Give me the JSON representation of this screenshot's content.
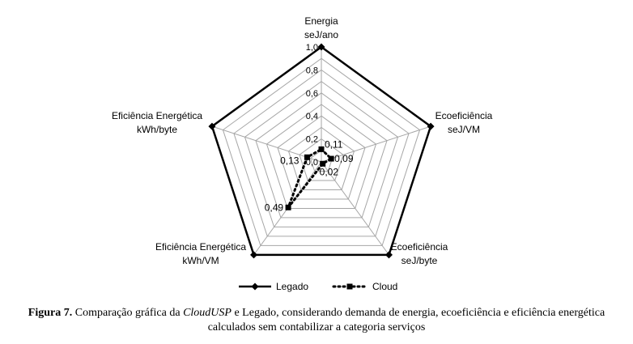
{
  "chart_data": {
    "type": "radar",
    "axes": [
      {
        "label": "Energia",
        "unit": "seJ/ano"
      },
      {
        "label": "Ecoeficiência",
        "unit": "seJ/VM"
      },
      {
        "label": "Ecoeficiência",
        "unit": "seJ/byte"
      },
      {
        "label": "Eficiência Energética",
        "unit": "kWh/VM"
      },
      {
        "label": "Eficiência Energética",
        "unit": "kWh/byte"
      }
    ],
    "ticks": [
      "0,0",
      "0,2",
      "0,4",
      "0,6",
      "0,8",
      "1,0"
    ],
    "tick_values": [
      0,
      0.2,
      0.4,
      0.6,
      0.8,
      1.0
    ],
    "rlim": [
      0,
      1.0
    ],
    "grid": true,
    "series": [
      {
        "name": "Legado",
        "values": [
          1.0,
          1.0,
          1.0,
          1.0,
          1.0
        ],
        "color": "#000000",
        "style": "solid",
        "marker": "diamond",
        "data_labels": []
      },
      {
        "name": "Cloud",
        "values": [
          0.11,
          0.09,
          0.02,
          0.49,
          0.13
        ],
        "color": "#000000",
        "style": "dotted",
        "marker": "square",
        "data_labels": [
          "0,11",
          "0,09",
          "0,02",
          "0,49",
          "0,13"
        ]
      }
    ],
    "legend": "bottom"
  },
  "caption": {
    "label": "Figura 7.",
    "text_before": " Comparação gráfica da ",
    "italic": "CloudUSP",
    "text_after": " e Legado, considerando demanda de energia, ecoeficiência e eficiência energética calculados sem contabilizar a categoria serviços"
  }
}
